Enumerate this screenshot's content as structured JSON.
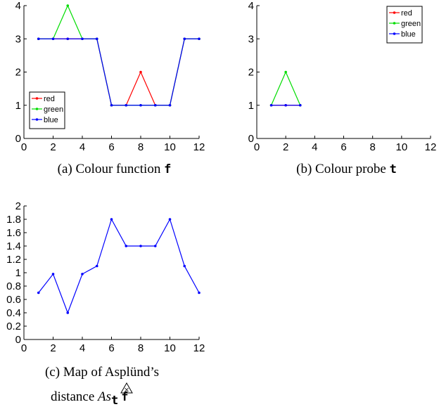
{
  "colors": {
    "red": "#ff0000",
    "green": "#00dd00",
    "blue": "#0000ff"
  },
  "chart_data": [
    {
      "type": "line",
      "x": [
        1,
        2,
        3,
        4,
        5,
        6,
        7,
        8,
        9,
        10,
        11,
        12
      ],
      "series": [
        {
          "name": "red",
          "color": "#ff0000",
          "values": [
            3,
            3,
            3,
            3,
            3,
            1,
            1,
            2,
            1,
            1,
            3,
            3
          ]
        },
        {
          "name": "green",
          "color": "#00dd00",
          "values": [
            3,
            3,
            4,
            3,
            3,
            1,
            1,
            1,
            1,
            1,
            3,
            3
          ]
        },
        {
          "name": "blue",
          "color": "#0000ff",
          "values": [
            3,
            3,
            3,
            3,
            3,
            1,
            1,
            1,
            1,
            1,
            3,
            3
          ]
        }
      ],
      "xlim": [
        0,
        12
      ],
      "ylim": [
        0,
        4
      ],
      "xticks": [
        "0",
        "2",
        "4",
        "6",
        "8",
        "10",
        "12"
      ],
      "yticks": [
        "0",
        "1",
        "2",
        "3",
        "4"
      ],
      "legend": "bottom-left",
      "grid": false,
      "caption": {
        "prefix": "(a) Colour function ",
        "symbol": "f"
      }
    },
    {
      "type": "line",
      "x": [
        1,
        2,
        3
      ],
      "series": [
        {
          "name": "red",
          "color": "#ff0000",
          "values": [
            1,
            1,
            1
          ]
        },
        {
          "name": "green",
          "color": "#00dd00",
          "values": [
            1,
            2,
            1
          ]
        },
        {
          "name": "blue",
          "color": "#0000ff",
          "values": [
            1,
            1,
            1
          ]
        }
      ],
      "xlim": [
        0,
        12
      ],
      "ylim": [
        0,
        4
      ],
      "xticks": [
        "0",
        "2",
        "4",
        "6",
        "8",
        "10",
        "12"
      ],
      "yticks": [
        "0",
        "1",
        "2",
        "3",
        "4"
      ],
      "legend": "top-right",
      "grid": false,
      "caption": {
        "prefix": "(b) Colour probe ",
        "symbol": "t"
      }
    },
    {
      "type": "line",
      "x": [
        1,
        2,
        3,
        4,
        5,
        6,
        7,
        8,
        9,
        10,
        11,
        12
      ],
      "series": [
        {
          "color": "#0000ff",
          "values": [
            0.7,
            0.98,
            0.4,
            0.98,
            1.1,
            1.8,
            1.4,
            1.4,
            1.4,
            1.8,
            1.1,
            0.7
          ]
        }
      ],
      "xlim": [
        0,
        12
      ],
      "ylim": [
        0,
        2
      ],
      "xticks": [
        "0",
        "2",
        "4",
        "6",
        "8",
        "10",
        "12"
      ],
      "yticks": [
        "0",
        "0.2",
        "0.4",
        "0.6",
        "0.8",
        "1",
        "1.2",
        "1.4",
        "1.6",
        "1.8",
        "2"
      ],
      "legend": "none",
      "grid": false,
      "caption": {
        "line1": "(c) Map of Asplünd’s",
        "prefix": "distance ",
        "math": "As",
        "sub": "t",
        "symbol": "f"
      }
    }
  ]
}
